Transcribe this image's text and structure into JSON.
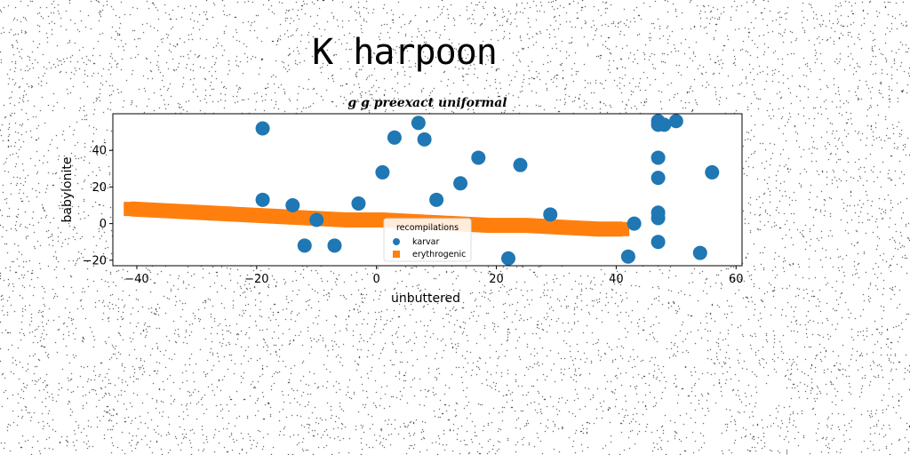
{
  "page": {
    "title": "K harpoon"
  },
  "chart_data": {
    "type": "scatter",
    "title": "g g preexact uniformal",
    "xlabel": "unbuttered",
    "ylabel": "babylonite",
    "xlim": [
      -44,
      61
    ],
    "ylim": [
      -23,
      60
    ],
    "xticks": [
      -40,
      -20,
      0,
      20,
      40,
      60
    ],
    "yticks": [
      -20,
      0,
      20,
      40
    ],
    "xtick_labels": [
      "−40",
      "−20",
      "0",
      "20",
      "40",
      "60"
    ],
    "ytick_labels": [
      "−20",
      "0",
      "20",
      "40"
    ],
    "grid": false,
    "legend": {
      "title": "recompilations",
      "placement": "lower-center",
      "entries": [
        "karvar",
        "erythrogenic"
      ]
    },
    "series": [
      {
        "name": "karvar",
        "marker": "circle",
        "color": "#1f77b4",
        "points": [
          [
            -19,
            52
          ],
          [
            -19,
            13
          ],
          [
            -14,
            10
          ],
          [
            -12,
            -12
          ],
          [
            -10,
            2
          ],
          [
            -7,
            -12
          ],
          [
            -3,
            11
          ],
          [
            1,
            28
          ],
          [
            3,
            47
          ],
          [
            7,
            55
          ],
          [
            8,
            46
          ],
          [
            10,
            13
          ],
          [
            14,
            22
          ],
          [
            17,
            36
          ],
          [
            22,
            -19
          ],
          [
            24,
            32
          ],
          [
            29,
            5
          ],
          [
            43,
            0
          ],
          [
            42,
            -18
          ],
          [
            47,
            56
          ],
          [
            47,
            54
          ],
          [
            48,
            54
          ],
          [
            50,
            56
          ],
          [
            47,
            36
          ],
          [
            47,
            25
          ],
          [
            47,
            6
          ],
          [
            47,
            3
          ],
          [
            47,
            -10
          ],
          [
            54,
            -16
          ],
          [
            56,
            28
          ]
        ]
      },
      {
        "name": "erythrogenic",
        "marker": "square",
        "color": "#ff7f0e",
        "points": [
          [
            -41,
            8
          ],
          [
            -35,
            7
          ],
          [
            -29,
            6
          ],
          [
            -23,
            5
          ],
          [
            -17,
            4
          ],
          [
            -11,
            3
          ],
          [
            -5,
            2
          ],
          [
            1,
            2
          ],
          [
            7,
            1
          ],
          [
            13,
            0
          ],
          [
            19,
            -1
          ],
          [
            25,
            -1
          ],
          [
            31,
            -2
          ],
          [
            37,
            -3
          ],
          [
            41,
            -3
          ]
        ]
      }
    ]
  }
}
